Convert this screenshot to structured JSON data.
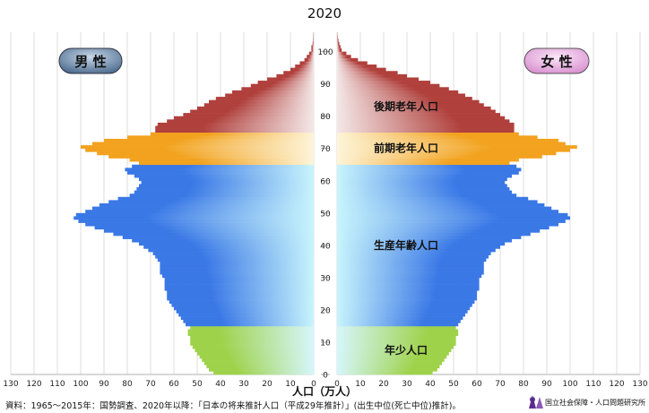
{
  "chart_data": {
    "type": "bar",
    "orientation": "horizontal",
    "title": "2020",
    "xlabel": "人口（万人）",
    "ylabel": "",
    "xlim": [
      0,
      130
    ],
    "ylim": [
      0,
      105
    ],
    "x_ticks": [
      130,
      120,
      110,
      100,
      90,
      80,
      70,
      60,
      50,
      40,
      30,
      20,
      10,
      0
    ],
    "age_ticks": [
      0,
      10,
      20,
      30,
      40,
      50,
      60,
      70,
      80,
      90,
      100
    ],
    "grid": true,
    "left_label": "男 性",
    "right_label": "女 性",
    "age_groups": [
      {
        "label": "年少人口",
        "age_from": 0,
        "age_to": 14,
        "color": "#9ed24a"
      },
      {
        "label": "生産年齢人口",
        "age_from": 15,
        "age_to": 64,
        "color": "#3a78e6"
      },
      {
        "label": "前期老年人口",
        "age_from": 65,
        "age_to": 74,
        "color": "#f2a21e"
      },
      {
        "label": "後期老年人口",
        "age_from": 75,
        "age_to": 105,
        "color": "#b0403c"
      }
    ],
    "series": [
      {
        "name": "男 性",
        "ages_from": 0,
        "values": [
          43,
          45,
          46,
          47,
          48,
          49,
          50,
          51,
          52,
          53,
          53,
          53,
          54,
          54,
          53,
          55,
          56,
          57,
          58,
          59,
          60,
          61,
          62,
          63,
          63,
          63,
          64,
          64,
          64,
          64,
          65,
          66,
          66,
          66,
          66,
          67,
          68,
          69,
          71,
          73,
          75,
          78,
          82,
          86,
          90,
          94,
          98,
          101,
          103,
          102,
          98,
          95,
          92,
          88,
          84,
          79,
          77,
          76,
          75,
          74,
          75,
          77,
          80,
          81,
          78,
          75,
          79,
          88,
          93,
          98,
          100,
          95,
          90,
          80,
          70,
          68,
          68,
          67,
          63,
          60,
          56,
          53,
          50,
          47,
          45,
          42,
          38,
          35,
          31,
          27,
          24,
          20,
          16,
          13,
          10,
          8,
          6,
          4,
          3,
          2,
          1,
          1,
          0.5,
          0.3,
          0.2,
          0.1
        ]
      },
      {
        "name": "女 性",
        "ages_from": 0,
        "values": [
          41,
          43,
          44,
          45,
          46,
          47,
          48,
          49,
          50,
          51,
          51,
          51,
          52,
          52,
          51,
          52,
          53,
          54,
          55,
          56,
          57,
          58,
          59,
          60,
          60,
          60,
          61,
          61,
          61,
          61,
          62,
          63,
          63,
          63,
          63,
          64,
          65,
          66,
          68,
          70,
          72,
          75,
          79,
          83,
          87,
          91,
          95,
          98,
          100,
          99,
          95,
          92,
          89,
          86,
          82,
          77,
          75,
          74,
          73,
          72,
          73,
          75,
          78,
          79,
          77,
          74,
          78,
          88,
          94,
          100,
          103,
          98,
          95,
          86,
          78,
          76,
          76,
          76,
          74,
          72,
          70,
          68,
          66,
          63,
          61,
          58,
          55,
          52,
          48,
          44,
          40,
          35,
          30,
          26,
          21,
          17,
          13,
          9,
          6,
          4,
          2,
          1.5,
          1,
          0.6,
          0.3,
          0.1
        ]
      }
    ]
  },
  "footer": {
    "source": "資料：1965～2015年：国勢調査、2020年以降：「日本の将来推計人口（平成29年推計）」(出生中位(死亡中位)推計)。",
    "org": "国立社会保障・人口問題研究所"
  },
  "colors": {
    "badge_male": "#4a6a8c",
    "badge_female": "#e8a8e0",
    "center_fade": "#d6f6fb"
  }
}
